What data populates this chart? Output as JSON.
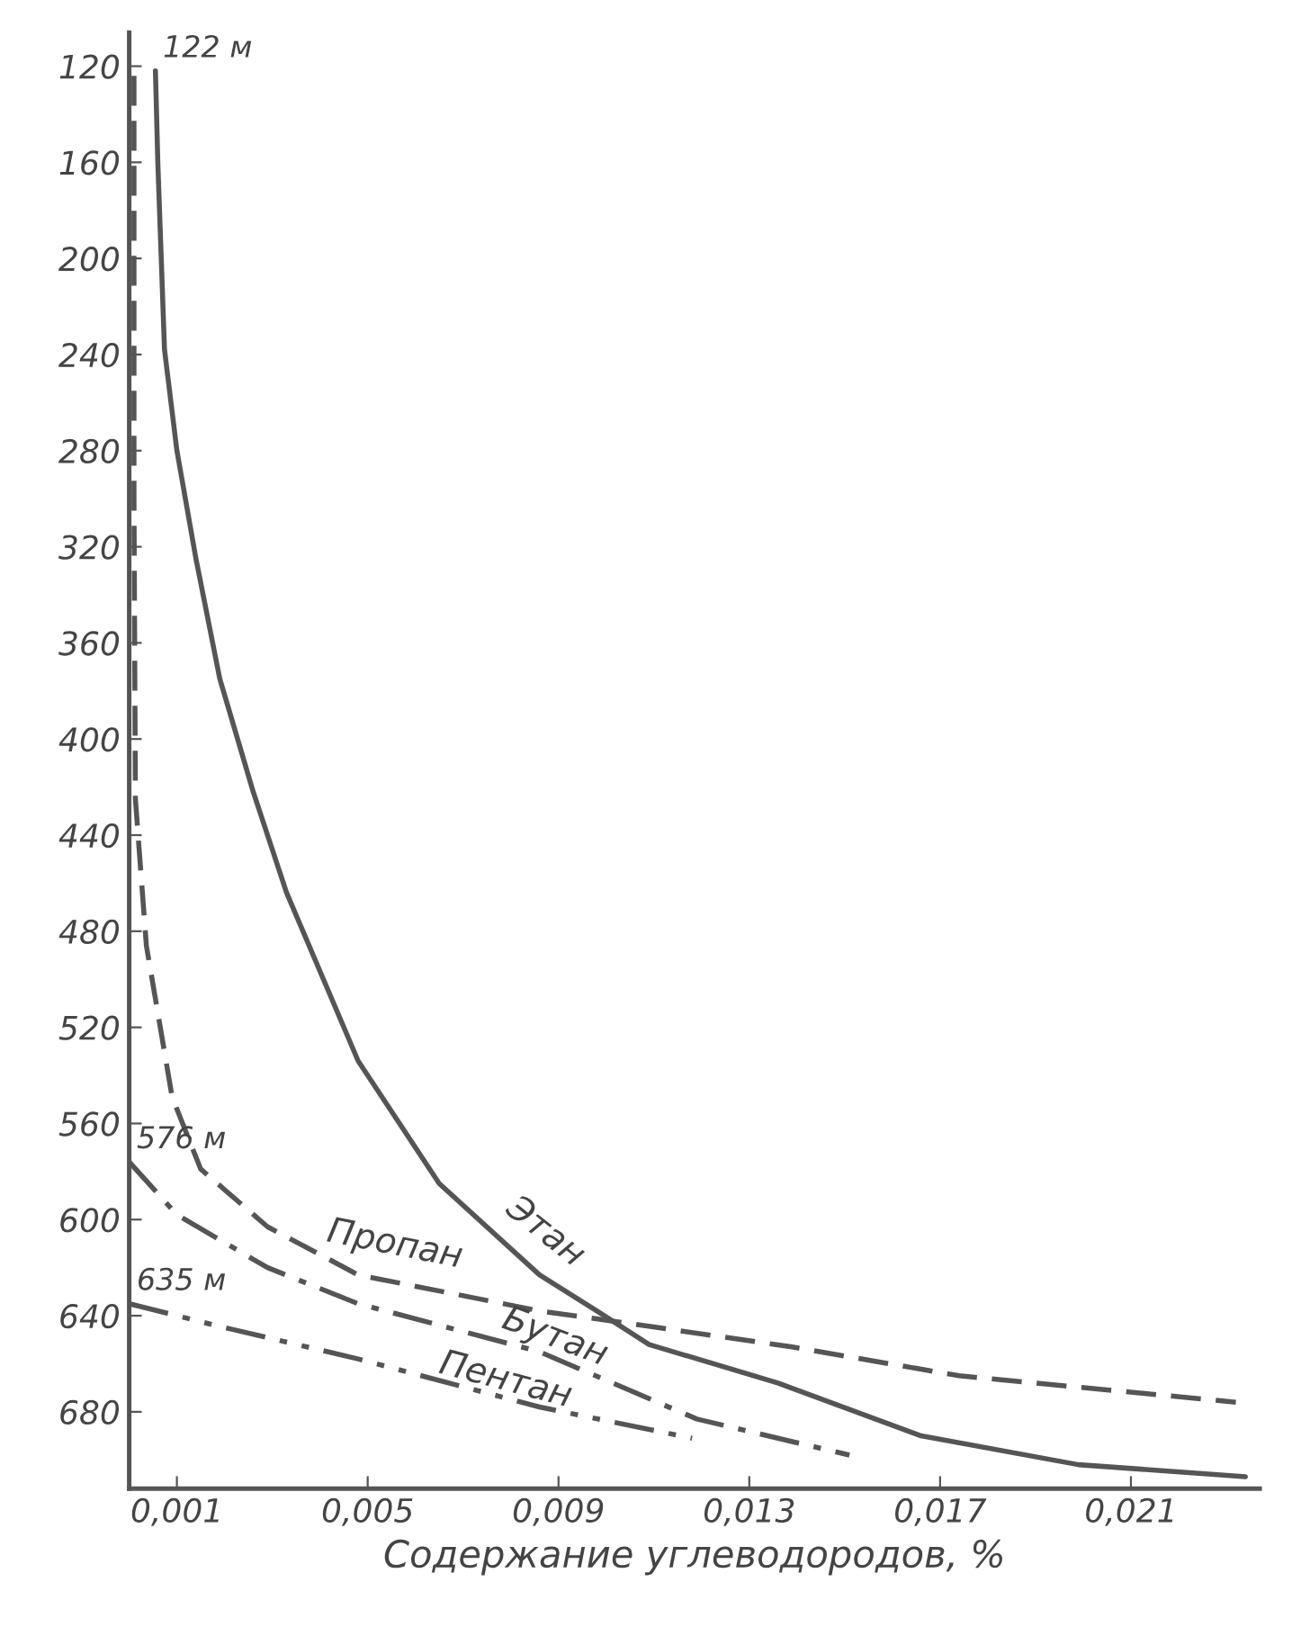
{
  "chart_data": {
    "type": "line",
    "xlabel": "Содержание углеводородов, %",
    "xlim": [
      0,
      0.0237
    ],
    "ylim": [
      712,
      106
    ],
    "xticks": [
      {
        "value": 0.001,
        "label": "0,001"
      },
      {
        "value": 0.005,
        "label": "0,005"
      },
      {
        "value": 0.009,
        "label": "0,009"
      },
      {
        "value": 0.013,
        "label": "0,013"
      },
      {
        "value": 0.017,
        "label": "0,017"
      },
      {
        "value": 0.021,
        "label": "0,021"
      }
    ],
    "yticks": [
      120,
      160,
      200,
      240,
      280,
      320,
      360,
      400,
      440,
      480,
      520,
      560,
      600,
      640,
      680
    ],
    "grid": false,
    "legend": false,
    "series": [
      {
        "name": "Этан",
        "color": "#555555",
        "line_style": "solid",
        "x": [
          0.00055,
          0.0006,
          0.00074,
          0.001,
          0.0014,
          0.0019,
          0.0026,
          0.0033,
          0.0048,
          0.0065,
          0.0086,
          0.0098,
          0.0109,
          0.0136,
          0.0166,
          0.0199,
          0.0234
        ],
        "values": [
          122,
          160,
          238,
          280,
          325,
          375,
          422,
          464,
          534,
          585,
          623,
          638,
          652,
          668,
          690,
          702,
          707
        ]
      },
      {
        "name": "Пропан",
        "color": "#555555",
        "line_style": "dashed",
        "x": [
          0.0001,
          0.0001,
          0.00013,
          0.00036,
          0.0009,
          0.0015,
          0.0029,
          0.0048,
          0.0086,
          0.0104,
          0.0139,
          0.0174,
          0.0232
        ],
        "values": [
          124,
          300,
          425,
          486,
          549,
          579,
          603,
          623,
          638,
          643,
          653,
          665,
          676
        ]
      },
      {
        "name": "Бутан",
        "color": "#555555",
        "line_style": "dashdot",
        "x": [
          0,
          0.001,
          0.0029,
          0.0048,
          0.0086,
          0.0119,
          0.0151
        ],
        "values": [
          576,
          598,
          620,
          635,
          655,
          683,
          698
        ]
      },
      {
        "name": "Пентан",
        "color": "#555555",
        "line_style": "dashdotdot",
        "x": [
          0,
          0.0018,
          0.0048,
          0.0086,
          0.0118
        ],
        "values": [
          635,
          644,
          658,
          678,
          691
        ]
      }
    ],
    "annotations": [
      "122 м",
      "576 м",
      "635 м"
    ]
  }
}
